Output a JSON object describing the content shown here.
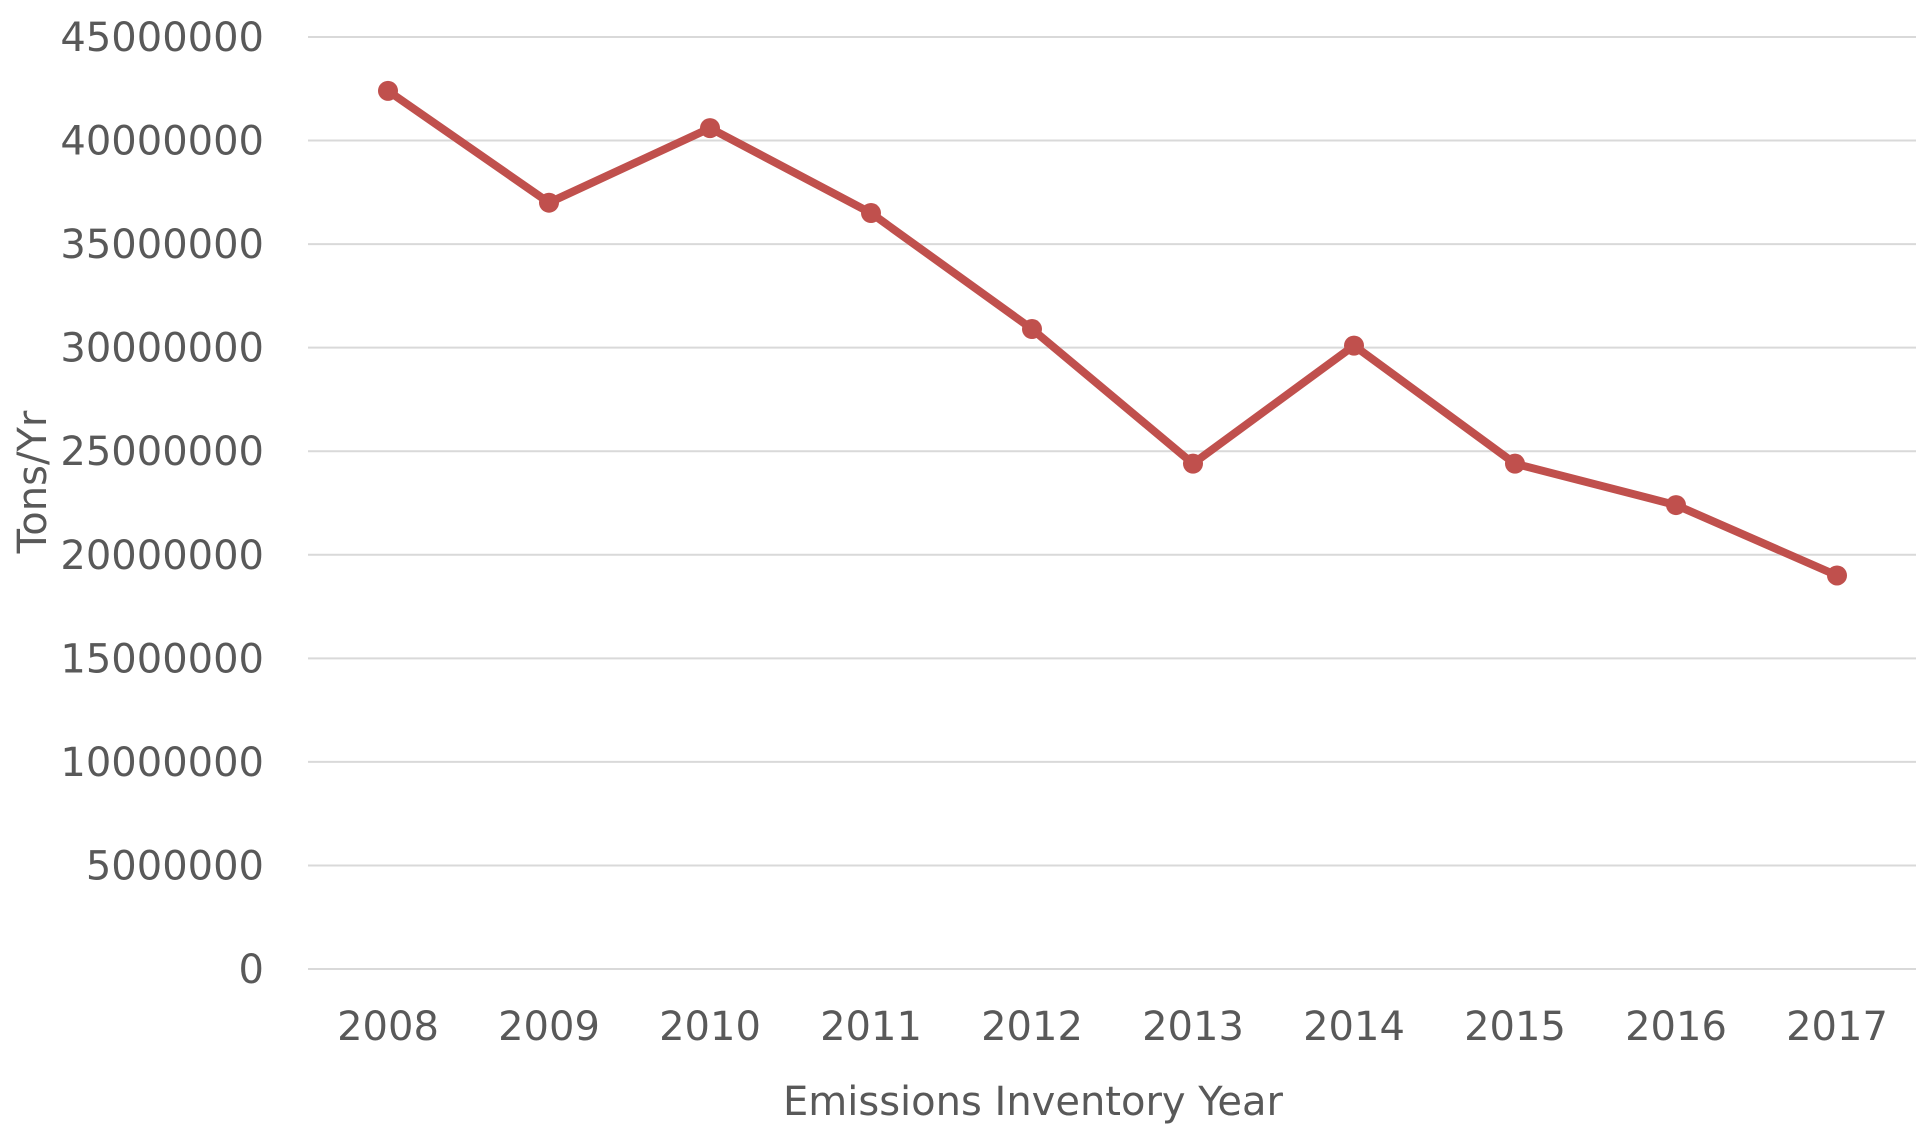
{
  "chart_data": {
    "type": "line",
    "title": "",
    "xlabel": "Emissions Inventory Year",
    "ylabel": "Tons/Yr",
    "categories": [
      "2008",
      "2009",
      "2010",
      "2011",
      "2012",
      "2013",
      "2014",
      "2015",
      "2016",
      "2017"
    ],
    "series": [
      {
        "values": [
          42400000,
          37000000,
          40600000,
          36500000,
          30900000,
          24400000,
          30100000,
          24400000,
          22400000,
          19000000
        ],
        "color": "#c0504d"
      }
    ],
    "ylim": [
      0,
      45000000
    ],
    "yticks": [
      0,
      5000000,
      10000000,
      15000000,
      20000000,
      25000000,
      30000000,
      35000000,
      40000000,
      45000000
    ],
    "grid": true,
    "legend": "none"
  }
}
